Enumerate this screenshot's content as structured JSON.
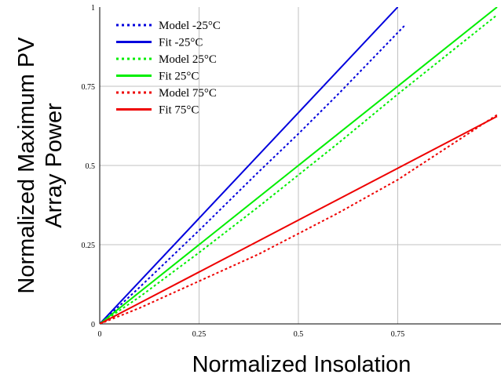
{
  "chart_data": {
    "type": "line",
    "xlabel": "Normalized Insolation",
    "ylabel_lines": [
      "Normalized Maximum PV",
      "Array Power"
    ],
    "xlim": [
      0,
      1
    ],
    "ylim": [
      0,
      1
    ],
    "x_ticks": [
      "0",
      "0.25",
      "0.5",
      "0.75"
    ],
    "y_ticks": [
      "0",
      "0.25",
      "0.5",
      "0.75",
      "1"
    ],
    "grid": true,
    "legend_position": "top-left",
    "series": [
      {
        "name": "Model -25°C",
        "color": "#0000dd",
        "style": "dotted",
        "x": [
          0,
          0.1,
          0.25,
          0.4,
          0.5,
          0.6,
          0.77
        ],
        "y": [
          0,
          0.115,
          0.295,
          0.48,
          0.6,
          0.725,
          0.945
        ]
      },
      {
        "name": "Fit -25°C",
        "color": "#0000dd",
        "style": "solid",
        "x": [
          0,
          0.75
        ],
        "y": [
          0,
          1
        ]
      },
      {
        "name": "Model 25°C",
        "color": "#00ee00",
        "style": "dotted",
        "x": [
          0,
          0.1,
          0.25,
          0.4,
          0.5,
          0.6,
          0.75,
          1.0
        ],
        "y": [
          0,
          0.085,
          0.225,
          0.37,
          0.47,
          0.57,
          0.725,
          0.975
        ]
      },
      {
        "name": "Fit 25°C",
        "color": "#00ee00",
        "style": "solid",
        "x": [
          0,
          1.0
        ],
        "y": [
          0,
          1.0
        ]
      },
      {
        "name": "Model 75°C",
        "color": "#ee0000",
        "style": "dotted",
        "x": [
          0,
          0.1,
          0.25,
          0.4,
          0.5,
          0.6,
          0.75,
          1.0
        ],
        "y": [
          0,
          0.05,
          0.135,
          0.22,
          0.285,
          0.35,
          0.455,
          0.66
        ]
      },
      {
        "name": "Fit 75°C",
        "color": "#ee0000",
        "style": "solid",
        "x": [
          0,
          1.0
        ],
        "y": [
          0,
          0.655
        ]
      }
    ]
  }
}
